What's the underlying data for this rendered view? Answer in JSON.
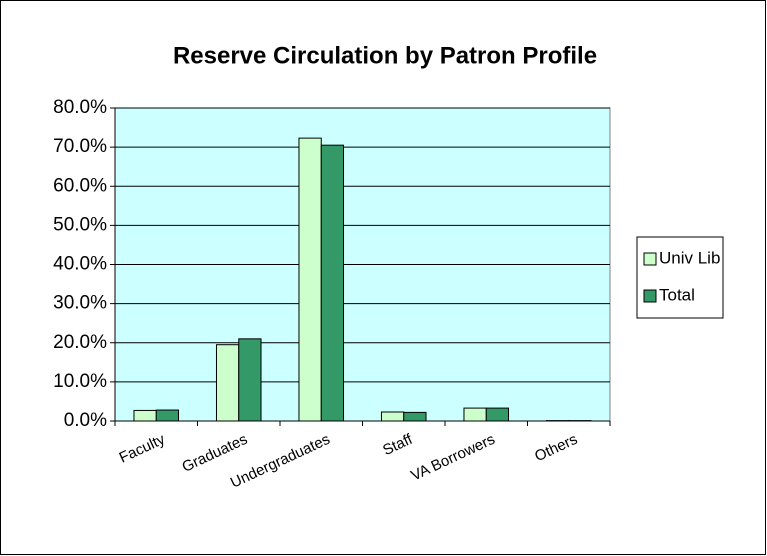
{
  "chart_data": {
    "type": "bar",
    "title": "Reserve Circulation by Patron Profile",
    "categories": [
      "Faculty",
      "Graduates",
      "Undergraduates",
      "Staff",
      "VA Borrowers",
      "Others"
    ],
    "series": [
      {
        "name": "Univ Lib",
        "color": "#ccffcc",
        "values": [
          2.7,
          19.5,
          72.3,
          2.3,
          3.3,
          0.1
        ]
      },
      {
        "name": "Total",
        "color": "#339966",
        "values": [
          2.8,
          21.0,
          70.5,
          2.2,
          3.3,
          0.1
        ]
      }
    ],
    "ylim": [
      0,
      80
    ],
    "yticks": [
      {
        "value": 0,
        "label": "0.0%"
      },
      {
        "value": 10,
        "label": "10.0%"
      },
      {
        "value": 20,
        "label": "20.0%"
      },
      {
        "value": 30,
        "label": "30.0%"
      },
      {
        "value": 40,
        "label": "40.0%"
      },
      {
        "value": 50,
        "label": "50.0%"
      },
      {
        "value": 60,
        "label": "60.0%"
      },
      {
        "value": 70,
        "label": "70.0%"
      },
      {
        "value": 80,
        "label": "80.0%"
      }
    ],
    "grid": true,
    "plot_background": "#ccffff",
    "legend": "right"
  }
}
